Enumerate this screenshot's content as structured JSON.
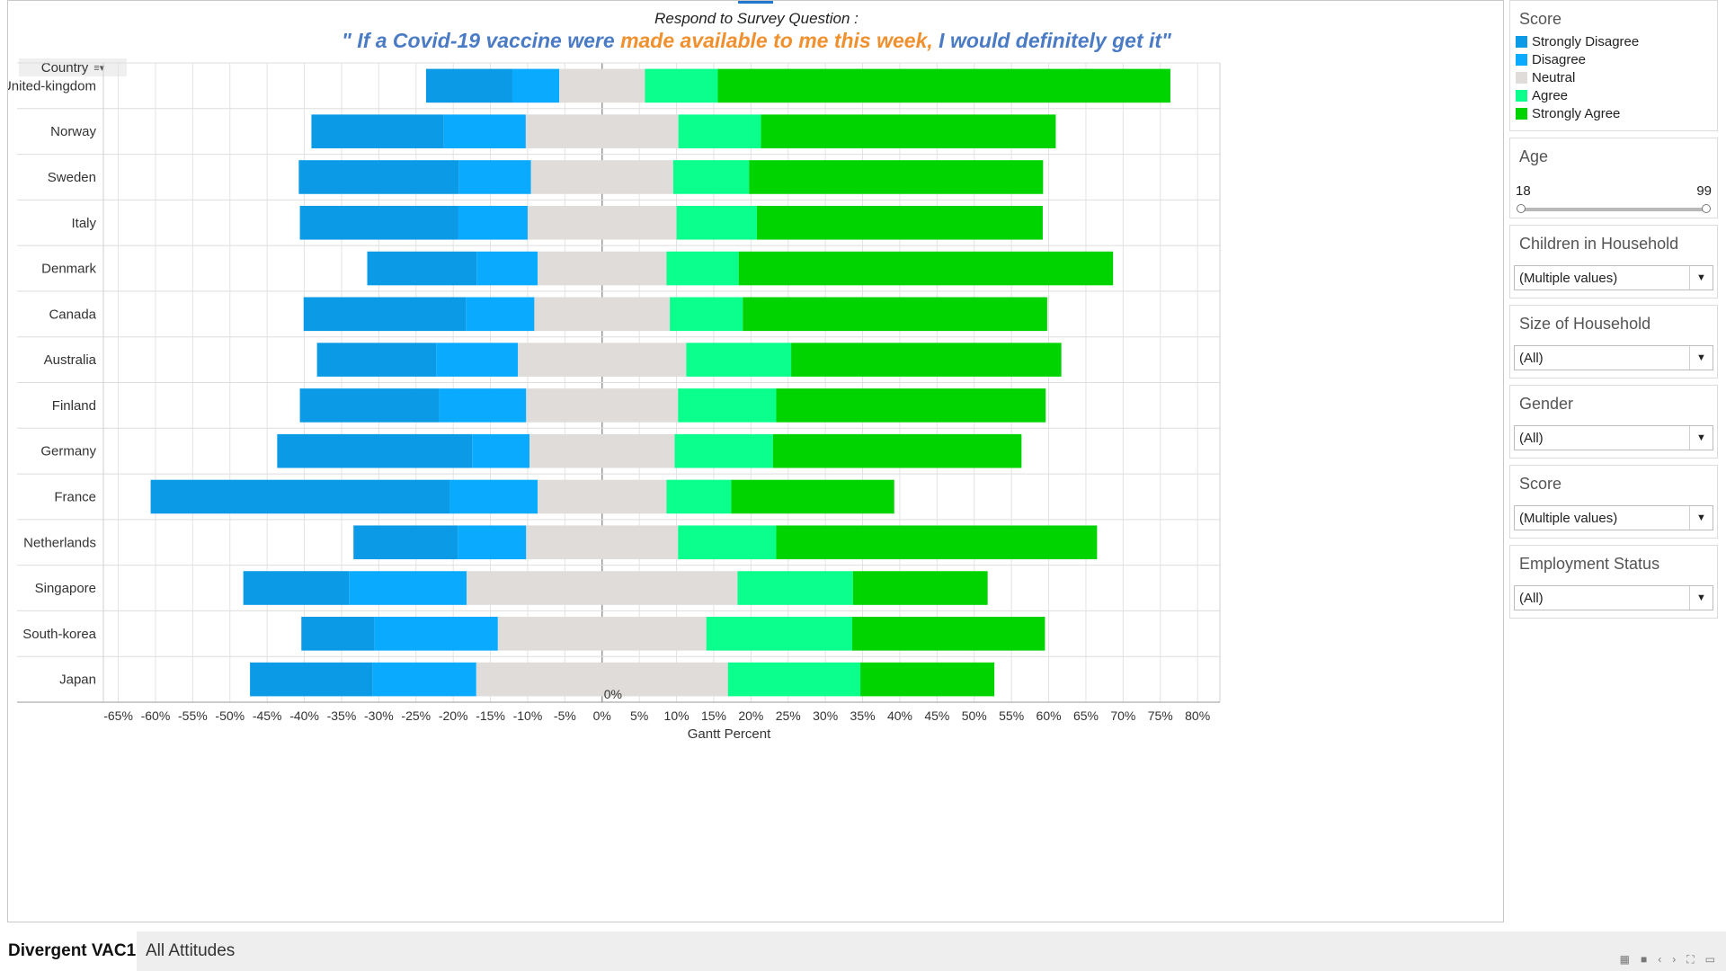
{
  "title_line1": "Respond to Survey Question :",
  "title_line2_part1": "\" If a Covid-19 vaccine were ",
  "title_line2_part2": "made available to me this week,",
  "title_line2_part3": " I would definitely get it\"",
  "country_header": "Country",
  "colors": {
    "strongly_disagree": "#0a9ae6",
    "disagree": "#0aaaff",
    "neutral": "#e0dcd9",
    "agree": "#0aff8c",
    "strongly_agree": "#00d400"
  },
  "legend": {
    "title": "Score",
    "items": [
      {
        "label": "Strongly Disagree",
        "color": "#0a9ae6"
      },
      {
        "label": "Disagree",
        "color": "#0aaaff"
      },
      {
        "label": "Neutral",
        "color": "#e0dcd9"
      },
      {
        "label": "Agree",
        "color": "#0aff8c"
      },
      {
        "label": "Strongly Agree",
        "color": "#00d400"
      }
    ]
  },
  "filters": {
    "age": {
      "title": "Age",
      "min": "18",
      "max": "99"
    },
    "children": {
      "title": "Children in Household",
      "value": "(Multiple values)"
    },
    "size": {
      "title": "Size of Household",
      "value": "(All)"
    },
    "gender": {
      "title": "Gender",
      "value": "(All)"
    },
    "score": {
      "title": "Score",
      "value": "(Multiple values)"
    },
    "employment": {
      "title": "Employment Status",
      "value": "(All)"
    }
  },
  "tabs": {
    "active": "Divergent VAC1",
    "other": "All Attitudes"
  },
  "chart_data": {
    "type": "bar",
    "orientation": "horizontal-diverging-stacked",
    "xlabel": "Gantt Percent",
    "xlim": [
      -67,
      83
    ],
    "x_ticks": [
      -65,
      -60,
      -55,
      -50,
      -45,
      -40,
      -35,
      -30,
      -25,
      -20,
      -15,
      -10,
      -5,
      0,
      5,
      10,
      15,
      20,
      25,
      30,
      35,
      40,
      45,
      50,
      55,
      60,
      65,
      70,
      75,
      80
    ],
    "zero_label": "0%",
    "legend_position": "right",
    "grid": true,
    "categories": [
      "United-kingdom",
      "Norway",
      "Sweden",
      "Italy",
      "Denmark",
      "Canada",
      "Australia",
      "Finland",
      "Germany",
      "France",
      "Netherlands",
      "Singapore",
      "South-korea",
      "Japan"
    ],
    "series": [
      {
        "name": "Strongly Disagree",
        "values": [
          11.6,
          17.8,
          21.5,
          21.3,
          14.7,
          21.8,
          16.0,
          18.7,
          26.2,
          40.2,
          14.0,
          14.2,
          9.8,
          16.5
        ]
      },
      {
        "name": "Disagree",
        "values": [
          6.3,
          11.0,
          9.7,
          9.3,
          8.2,
          9.2,
          11.0,
          11.7,
          7.7,
          11.8,
          9.2,
          15.8,
          16.6,
          13.9
        ]
      },
      {
        "name": "Neutral",
        "values": [
          11.5,
          20.5,
          19.1,
          20.0,
          17.3,
          18.2,
          22.6,
          20.4,
          19.5,
          17.3,
          20.4,
          36.4,
          28.0,
          33.8
        ]
      },
      {
        "name": "Agree",
        "values": [
          9.8,
          11.1,
          10.2,
          10.8,
          9.7,
          9.8,
          14.1,
          13.2,
          13.2,
          8.7,
          13.2,
          15.5,
          19.6,
          17.8
        ]
      },
      {
        "name": "Strongly Agree",
        "values": [
          60.8,
          39.6,
          39.5,
          38.4,
          50.3,
          40.9,
          36.3,
          36.2,
          33.4,
          21.9,
          43.1,
          18.1,
          25.9,
          18.0
        ]
      }
    ]
  }
}
